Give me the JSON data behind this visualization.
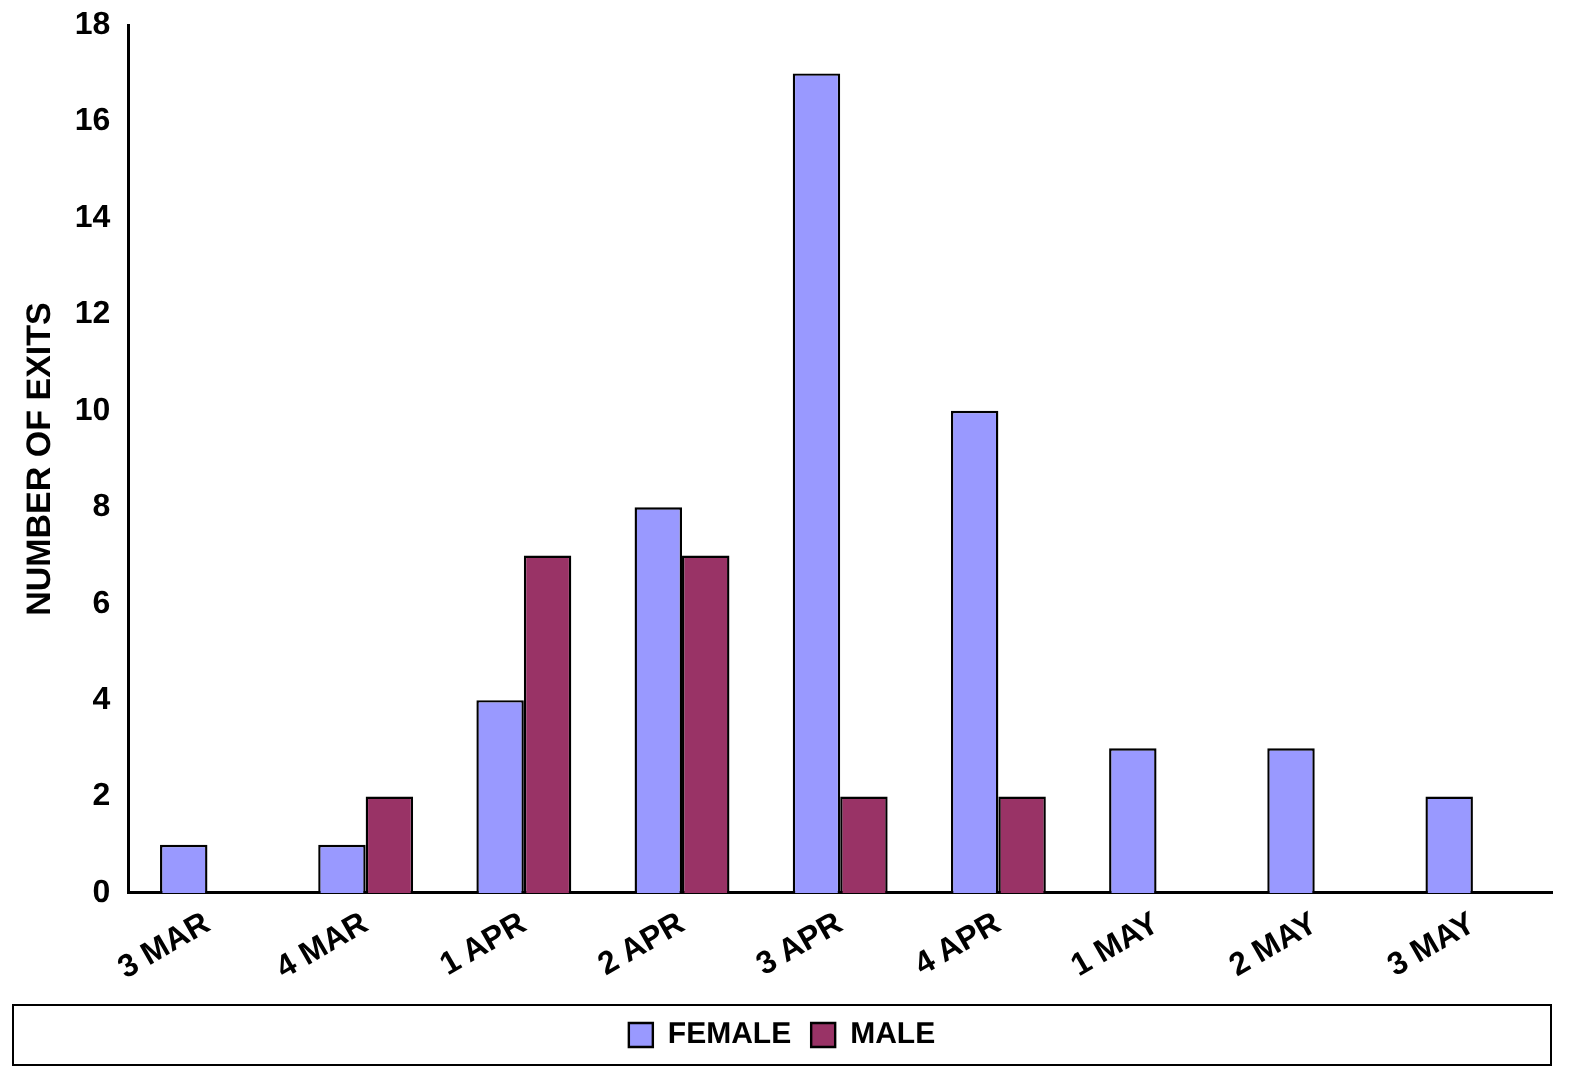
{
  "chart_data": {
    "type": "bar",
    "ylabel": "NUMBER OF EXITS",
    "categories": [
      "3 MAR",
      "4 MAR",
      "1 APR",
      "2 APR",
      "3 APR",
      "4 APR",
      "1 MAY",
      "2 MAY",
      "3 MAY"
    ],
    "series": [
      {
        "name": "FEMALE",
        "color": "#9999ff",
        "values": [
          1,
          1,
          4,
          8,
          17,
          10,
          3,
          3,
          2
        ]
      },
      {
        "name": "MALE",
        "color": "#993366",
        "values": [
          0,
          2,
          7,
          7,
          2,
          2,
          0,
          0,
          0
        ]
      }
    ],
    "ylim": [
      0,
      18
    ],
    "yticks": [
      0,
      2,
      4,
      6,
      8,
      10,
      12,
      14,
      16,
      18
    ],
    "grid": false,
    "legend": "bottom"
  }
}
